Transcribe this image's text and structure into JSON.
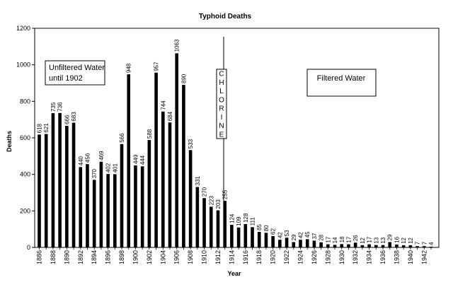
{
  "chart_data": {
    "type": "bar",
    "title": "Typhoid Deaths",
    "xlabel": "Year",
    "ylabel": "Deaths",
    "ylim": [
      0,
      1200
    ],
    "yticks": [
      0,
      200,
      400,
      600,
      800,
      1000,
      1200
    ],
    "grid": false,
    "legend": "none",
    "bar_color": "#000000",
    "categories": [
      1886,
      1887,
      1888,
      1889,
      1890,
      1891,
      1892,
      1893,
      1894,
      1895,
      1896,
      1897,
      1898,
      1899,
      1900,
      1901,
      1902,
      1903,
      1904,
      1905,
      1906,
      1907,
      1908,
      1909,
      1910,
      1911,
      1912,
      1913,
      1914,
      1915,
      1916,
      1917,
      1918,
      1919,
      1920,
      1921,
      1922,
      1923,
      1924,
      1925,
      1926,
      1927,
      1928,
      1929,
      1930,
      1931,
      1932,
      1933,
      1934,
      1935,
      1936,
      1937,
      1938,
      1939,
      1940,
      1941,
      1942,
      1943
    ],
    "values": [
      618,
      621,
      735,
      736,
      666,
      683,
      440,
      456,
      370,
      469,
      402,
      401,
      566,
      948,
      449,
      444,
      588,
      957,
      744,
      684,
      1063,
      890,
      533,
      331,
      270,
      223,
      203,
      255,
      124,
      109,
      128,
      111,
      85,
      80,
      62,
      42,
      53,
      29,
      42,
      45,
      37,
      28,
      17,
      14,
      18,
      17,
      26,
      12,
      17,
      13,
      13,
      29,
      16,
      12,
      12,
      7,
      7,
      4
    ],
    "tick_labels": [
      "1886",
      "1888",
      "1890",
      "1892",
      "1894",
      "1896",
      "1898",
      "1900",
      "1902",
      "1904",
      "1906",
      "1908",
      "1910",
      "1912",
      "1914",
      "1916",
      "1918",
      "1920",
      "1922",
      "1924",
      "1926",
      "1928",
      "1930",
      "1932",
      "1934",
      "1936",
      "1938",
      "1940",
      "1942"
    ],
    "annotations": {
      "unfiltered": [
        "Unfiltered Water",
        "until 1902"
      ],
      "filtered": "Filtered Water",
      "chlorine": "CHLORINE",
      "chlorine_year": 1913
    }
  }
}
